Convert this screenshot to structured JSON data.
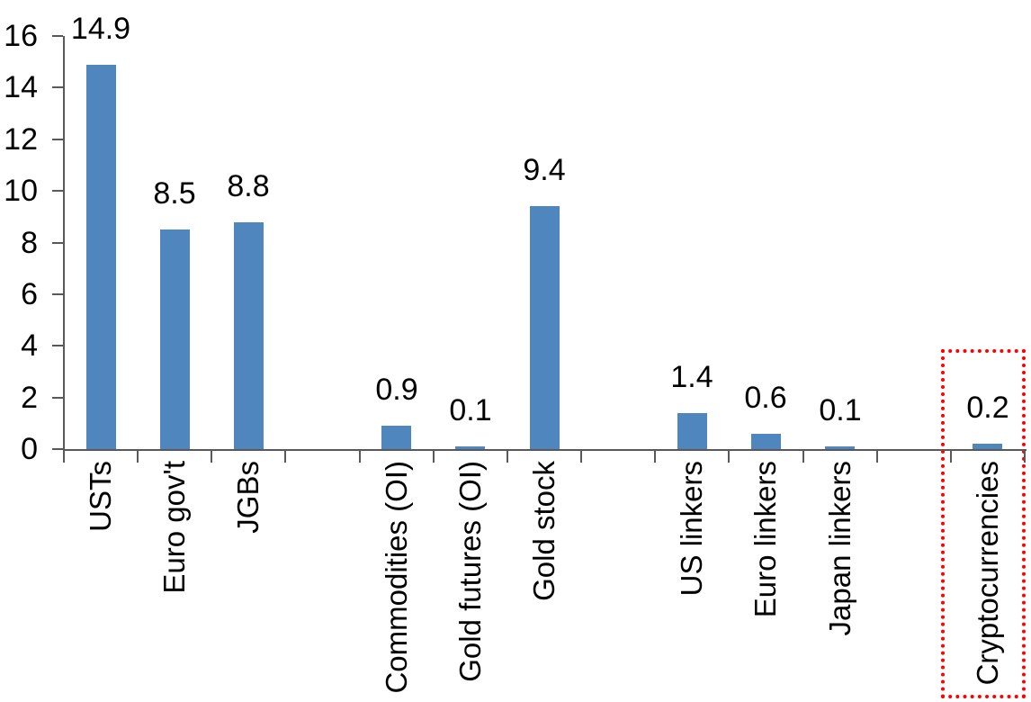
{
  "chart_data": {
    "type": "bar",
    "title": "",
    "categories": [
      "USTs",
      "Euro gov't",
      "JGBs",
      "Commodities (OI)",
      "Gold futures (OI)",
      "Gold stock",
      "US linkers",
      "Euro linkers",
      "Japan linkers",
      "Cryptocurrencies"
    ],
    "values": [
      14.9,
      8.5,
      8.8,
      0.9,
      0.1,
      9.4,
      1.4,
      0.6,
      0.1,
      0.2
    ],
    "data_labels": [
      "14.9",
      "8.5",
      "8.8",
      "0.9",
      "0.1",
      "9.4",
      "1.4",
      "0.6",
      "0.1",
      "0.2"
    ],
    "y_ticks": [
      0,
      2,
      4,
      6,
      8,
      10,
      12,
      14,
      16
    ],
    "ylim": [
      0,
      16
    ],
    "xlabel": "",
    "ylabel": "",
    "grid": false,
    "legend": false,
    "layout_hints": {
      "slot_indices": [
        0,
        1,
        2,
        4,
        5,
        6,
        8,
        9,
        10,
        12
      ],
      "total_slots": 13,
      "group_gaps_after": [
        "JGBs",
        "Gold stock",
        "Japan linkers"
      ],
      "category_label_rotation_deg": -90,
      "data_label_position": "outside-end"
    },
    "colors": {
      "bar": "#4e86bd",
      "axis": "#595959",
      "text": "#000000",
      "highlight_border": "#ff0000"
    },
    "highlight": {
      "category": "Cryptocurrencies",
      "style": "red-dotted-box"
    }
  }
}
